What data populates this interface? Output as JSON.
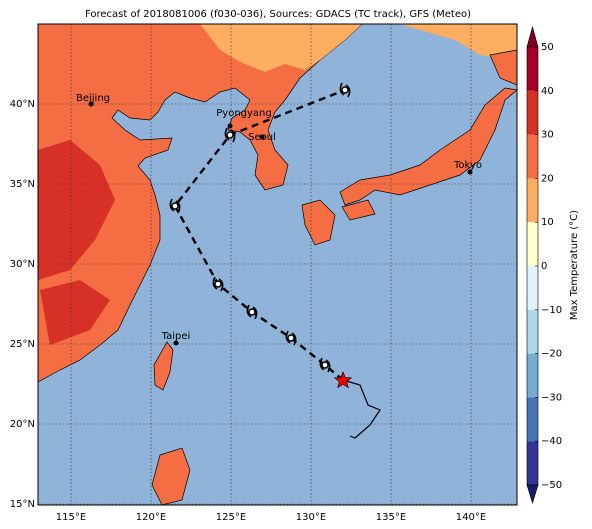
{
  "title": "Forecast of 2018081006 (f030-036), Sources: GDACS (TC track), GFS (Meteo)",
  "lat_labels": [
    "40°N",
    "35°N",
    "30°N",
    "25°N",
    "20°N",
    "15°N"
  ],
  "lon_labels": [
    "115°E",
    "120°E",
    "125°E",
    "130°E",
    "135°E",
    "140°E"
  ],
  "cities": [
    "Beijing",
    "Pyongyang",
    "Seoul",
    "Tokyo",
    "Taipei"
  ],
  "colorbar": {
    "label": "Max Temperature (°C)",
    "ticks": [
      "50",
      "40",
      "30",
      "20",
      "10",
      "0",
      "−10",
      "−20",
      "−30",
      "−40",
      "−50"
    ]
  }
}
